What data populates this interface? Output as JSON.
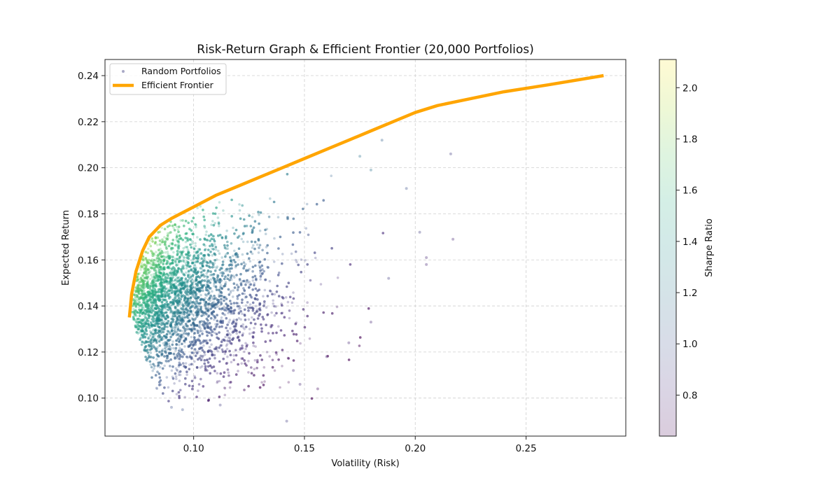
{
  "chart_data": {
    "type": "scatter",
    "title": "Risk-Return Graph & Efficient Frontier (20,000 Portfolios)",
    "xlabel": "Volatility (Risk)",
    "ylabel": "Expected Return",
    "xlim": [
      0.06,
      0.295
    ],
    "ylim": [
      0.0835,
      0.247
    ],
    "x_ticks": [
      0.1,
      0.15,
      0.2,
      0.25
    ],
    "x_tick_labels": [
      "0.10",
      "0.15",
      "0.20",
      "0.25"
    ],
    "y_ticks": [
      0.1,
      0.12,
      0.14,
      0.16,
      0.18,
      0.2,
      0.22,
      0.24
    ],
    "y_tick_labels": [
      "0.10",
      "0.12",
      "0.14",
      "0.16",
      "0.18",
      "0.20",
      "0.22",
      "0.24"
    ],
    "grid": true,
    "legend_position": "top-left",
    "legend": [
      "Random Portfolios",
      "Efficient Frontier"
    ],
    "colorbar": {
      "label": "Sharpe Ratio",
      "range": [
        0.64,
        2.11
      ],
      "ticks": [
        0.8,
        1.0,
        1.2,
        1.4,
        1.6,
        1.8,
        2.0
      ],
      "tick_labels": [
        "0.8",
        "1.0",
        "1.2",
        "1.4",
        "1.6",
        "1.8",
        "2.0"
      ],
      "colormap": "viridis"
    },
    "series": [
      {
        "name": "Random Portfolios",
        "kind": "scatter",
        "count": 20000,
        "color": "sharpe-ratio",
        "points": [
          [
            0.142,
            0.09,
            0.9
          ],
          [
            0.095,
            0.095,
            1.0
          ],
          [
            0.09,
            0.096,
            1.0
          ],
          [
            0.112,
            0.097,
            0.9
          ],
          [
            0.185,
            0.212,
            1.1
          ],
          [
            0.216,
            0.206,
            0.9
          ],
          [
            0.217,
            0.169,
            0.8
          ],
          [
            0.196,
            0.191,
            1.0
          ],
          [
            0.202,
            0.172,
            0.9
          ],
          [
            0.205,
            0.161,
            0.8
          ],
          [
            0.205,
            0.158,
            0.8
          ],
          [
            0.18,
            0.133,
            0.8
          ],
          [
            0.17,
            0.124,
            0.8
          ],
          [
            0.156,
            0.104,
            0.7
          ],
          [
            0.148,
            0.106,
            0.8
          ],
          [
            0.175,
            0.205,
            1.2
          ],
          [
            0.18,
            0.199,
            1.2
          ],
          [
            0.16,
            0.118,
            0.8
          ],
          [
            0.145,
            0.112,
            0.8
          ],
          [
            0.188,
            0.152,
            0.9
          ]
        ]
      },
      {
        "name": "Efficient Frontier",
        "kind": "line",
        "color": "#FFA500",
        "x": [
          0.071,
          0.072,
          0.074,
          0.077,
          0.08,
          0.085,
          0.09,
          0.1,
          0.11,
          0.12,
          0.13,
          0.14,
          0.15,
          0.16,
          0.17,
          0.18,
          0.19,
          0.2,
          0.21,
          0.22,
          0.24,
          0.26,
          0.285
        ],
        "y": [
          0.135,
          0.145,
          0.155,
          0.164,
          0.17,
          0.175,
          0.178,
          0.183,
          0.188,
          0.192,
          0.196,
          0.2,
          0.204,
          0.208,
          0.212,
          0.216,
          0.22,
          0.224,
          0.227,
          0.229,
          0.233,
          0.236,
          0.24
        ]
      }
    ]
  }
}
